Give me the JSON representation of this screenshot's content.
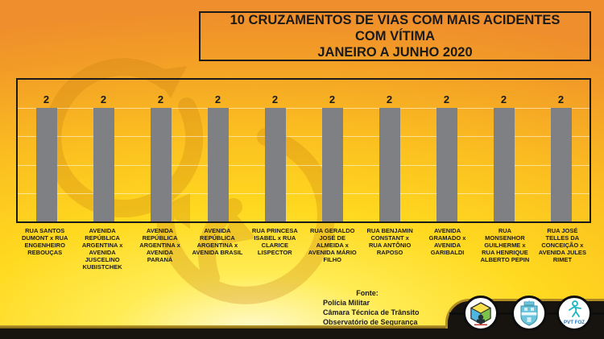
{
  "slide": {
    "title_lines": [
      "10 CRUZAMENTOS DE VIAS COM MAIS ACIDENTES",
      "COM VÍTIMA",
      "JANEIRO A JUNHO 2020"
    ]
  },
  "chart_data": {
    "type": "bar",
    "title": "10 CRUZAMENTOS DE VIAS COM MAIS ACIDENTES COM VÍTIMA - JANEIRO A JUNHO 2020",
    "categories": [
      "RUA SANTOS DUMONT x RUA ENGENHEIRO REBOUÇAS",
      "AVENIDA REPÚBLICA ARGENTINA x AVENIDA JUSCELINO KUBISTCHEK",
      "AVENIDA REPÚBLICA ARGENTINA x AVENIDA PARANÁ",
      "AVENIDA REPÚBLICA ARGENTINA x AVENIDA BRASIL",
      "RUA PRINCESA ISABEL x RUA CLARICE LISPECTOR",
      "RUA GERALDO JOSÉ DE ALMEIDA x AVENIDA MÁRIO FILHO",
      "RUA BENJAMIN CONSTANT x RUA ANTÔNIO RAPOSO",
      "AVENIDA GRAMADO x AVENIDA GARIBALDI",
      "RUA MONSENHOR GUILHERME x RUA HENRIQUE ALBERTO PEPIN",
      "RUA JOSÉ TELLES DA CONCEIÇÃO x AVENIDA JULES RIMET"
    ],
    "values": [
      2,
      2,
      2,
      2,
      2,
      2,
      2,
      2,
      2,
      2
    ],
    "xlabel": "",
    "ylabel": "",
    "ylim": [
      0,
      2.5
    ],
    "gridline_step": 0.5,
    "grid": true,
    "legend_position": "none",
    "bar_color": "#7F8084"
  },
  "footer": {
    "source_label": "Fonte:",
    "source_lines": [
      "Polícia Militar",
      "Câmara Técnica de Trânsito",
      "Observatório de Segurança"
    ]
  },
  "logos": {
    "pvt_label": "PVT FOZ"
  },
  "colors": {
    "background_orange": "#EF8E2C",
    "background_yellow": "#FFD91F",
    "background_light": "#FFFBD2",
    "bar": "#7F8084",
    "band_black": "#17140f",
    "band_gold": "#B08B23",
    "text": "#1a1a1a"
  }
}
